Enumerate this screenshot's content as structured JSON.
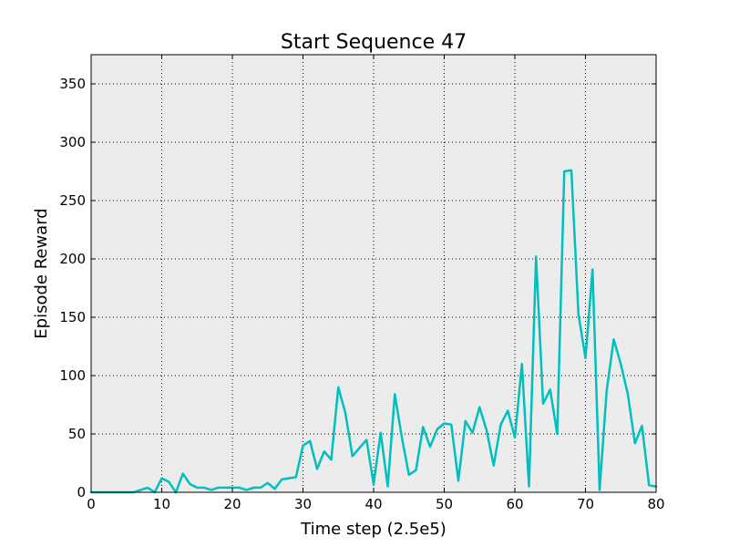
{
  "chart_data": {
    "type": "line",
    "title": "Start Sequence 47",
    "xlabel": "Time step (2.5e5)",
    "ylabel": "Episode Reward",
    "xlim": [
      0,
      80
    ],
    "ylim": [
      0,
      375
    ],
    "xticks": [
      0,
      10,
      20,
      30,
      40,
      50,
      60,
      70,
      80
    ],
    "yticks": [
      0,
      50,
      100,
      150,
      200,
      250,
      300,
      350
    ],
    "grid": true,
    "background": "#ececec",
    "line_color": "#00bfbf",
    "series": [
      {
        "x": [
          0,
          1,
          2,
          3,
          4,
          5,
          6,
          7,
          8,
          9,
          10,
          11,
          12,
          13,
          14,
          15,
          16,
          17,
          18,
          19,
          20,
          21,
          22,
          23,
          24,
          25,
          26,
          27,
          28,
          29,
          30,
          31,
          32,
          33,
          34,
          35,
          36,
          37,
          38,
          39,
          40,
          41,
          42,
          43,
          44,
          45,
          46,
          47,
          48,
          49,
          50,
          51,
          52,
          53,
          54,
          55,
          56,
          57,
          58,
          59,
          60,
          61,
          62,
          63,
          64,
          65,
          66,
          67,
          68,
          69,
          70,
          71,
          72,
          73,
          74,
          75,
          76,
          77,
          78,
          79,
          80
        ],
        "values": [
          0,
          0,
          0,
          0,
          0,
          0,
          0,
          2,
          4,
          0,
          12,
          9,
          0,
          16,
          7,
          4,
          4,
          2,
          4,
          4,
          4,
          4,
          2,
          4,
          4,
          8,
          3,
          11,
          12,
          13,
          40,
          44,
          20,
          35,
          28,
          90,
          68,
          31,
          38,
          45,
          7,
          51,
          5,
          84,
          47,
          15,
          19,
          56,
          39,
          54,
          59,
          58,
          10,
          61,
          51,
          73,
          53,
          23,
          58,
          70,
          47,
          110,
          5,
          202,
          76,
          88,
          50,
          275,
          276,
          153,
          115,
          191,
          2,
          87,
          131,
          110,
          84,
          42,
          57,
          6,
          5
        ]
      }
    ]
  }
}
